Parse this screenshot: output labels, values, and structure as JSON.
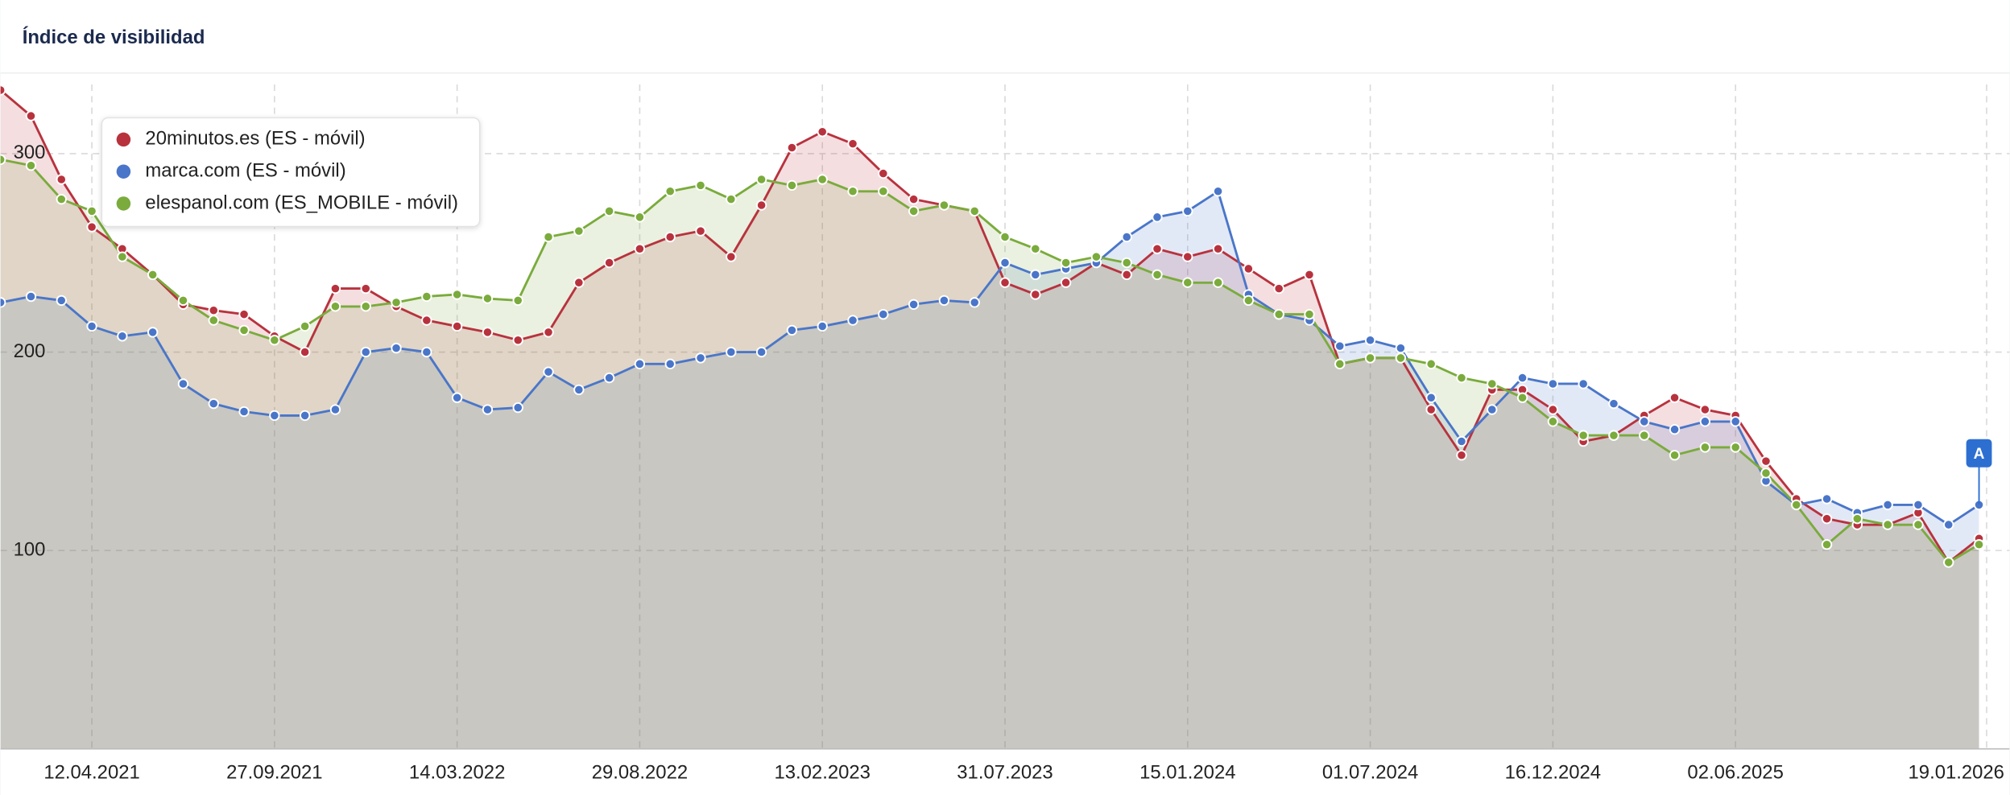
{
  "chart_data": {
    "type": "area",
    "title": "Índice de visibilidad",
    "x": [
      "18.01.2021",
      "15.02.2021",
      "15.03.2021",
      "12.04.2021",
      "10.05.2021",
      "07.06.2021",
      "05.07.2021",
      "02.08.2021",
      "30.08.2021",
      "27.09.2021",
      "25.10.2021",
      "22.11.2021",
      "20.12.2021",
      "17.01.2022",
      "14.02.2022",
      "14.03.2022",
      "11.04.2022",
      "09.05.2022",
      "06.06.2022",
      "04.07.2022",
      "01.08.2022",
      "29.08.2022",
      "26.09.2022",
      "24.10.2022",
      "21.11.2022",
      "19.12.2022",
      "16.01.2023",
      "13.02.2023",
      "13.03.2023",
      "10.04.2023",
      "08.05.2023",
      "05.06.2023",
      "03.07.2023",
      "31.07.2023",
      "28.08.2023",
      "25.09.2023",
      "23.10.2023",
      "20.11.2023",
      "18.12.2023",
      "15.01.2024",
      "12.02.2024",
      "11.03.2024",
      "08.04.2024",
      "06.05.2024",
      "03.06.2024",
      "01.07.2024",
      "29.07.2024",
      "26.08.2024",
      "23.09.2024",
      "21.10.2024",
      "18.11.2024",
      "16.12.2024",
      "13.01.2025",
      "10.02.2025",
      "10.03.2025",
      "07.04.2025",
      "05.05.2025",
      "02.06.2025",
      "30.06.2025",
      "28.07.2025",
      "25.08.2025",
      "22.09.2025",
      "20.10.2025",
      "17.11.2025",
      "15.12.2025",
      "12.01.2026"
    ],
    "series": [
      {
        "name": "20minutos.es (ES - móvil)",
        "color": "#b8323e",
        "values": [
          332,
          319,
          287,
          263,
          252,
          239,
          224,
          221,
          219,
          208,
          200,
          232,
          232,
          223,
          216,
          213,
          210,
          206,
          210,
          235,
          245,
          252,
          258,
          261,
          248,
          274,
          303,
          311,
          305,
          290,
          277,
          274,
          271,
          235,
          229,
          235,
          245,
          239,
          252,
          248,
          252,
          242,
          232,
          239,
          194,
          197,
          197,
          171,
          148,
          181,
          181,
          171,
          155,
          158,
          168,
          177,
          171,
          168,
          145,
          126,
          116,
          113,
          113,
          119,
          94,
          106
        ]
      },
      {
        "name": "marca.com (ES - móvil)",
        "color": "#4a76c9",
        "values": [
          225,
          228,
          226,
          213,
          208,
          210,
          184,
          174,
          170,
          168,
          168,
          171,
          200,
          202,
          200,
          177,
          171,
          172,
          190,
          181,
          187,
          194,
          194,
          197,
          200,
          200,
          211,
          213,
          216,
          219,
          224,
          226,
          225,
          245,
          239,
          242,
          245,
          258,
          268,
          271,
          281,
          229,
          219,
          216,
          203,
          206,
          202,
          177,
          155,
          171,
          187,
          184,
          184,
          174,
          165,
          161,
          165,
          165,
          135,
          123,
          126,
          119,
          123,
          123,
          113,
          123
        ]
      },
      {
        "name": "elespanol.com (ES_MOBILE - móvil)",
        "color": "#7aab3c",
        "values": [
          297,
          294,
          277,
          271,
          248,
          239,
          226,
          216,
          211,
          206,
          213,
          223,
          223,
          225,
          228,
          229,
          227,
          226,
          258,
          261,
          271,
          268,
          281,
          284,
          277,
          287,
          284,
          287,
          281,
          281,
          271,
          274,
          271,
          258,
          252,
          245,
          248,
          245,
          239,
          235,
          235,
          226,
          219,
          219,
          194,
          197,
          197,
          194,
          187,
          184,
          177,
          165,
          158,
          158,
          158,
          148,
          152,
          152,
          139,
          123,
          103,
          116,
          113,
          113,
          94,
          103
        ]
      }
    ],
    "xlim": [
      "18.01.2021",
      "09.02.2026"
    ],
    "xticks": [
      "12.04.2021",
      "27.09.2021",
      "14.03.2022",
      "29.08.2022",
      "13.02.2023",
      "31.07.2023",
      "15.01.2024",
      "01.07.2024",
      "16.12.2024",
      "02.06.2025",
      "19.01.2026"
    ],
    "ylim": [
      0,
      340
    ],
    "yticks": [
      100,
      200,
      300
    ],
    "grid": true,
    "legend": "top-left",
    "annotations": [
      {
        "x": "12.01.2026",
        "label": "A"
      }
    ]
  }
}
